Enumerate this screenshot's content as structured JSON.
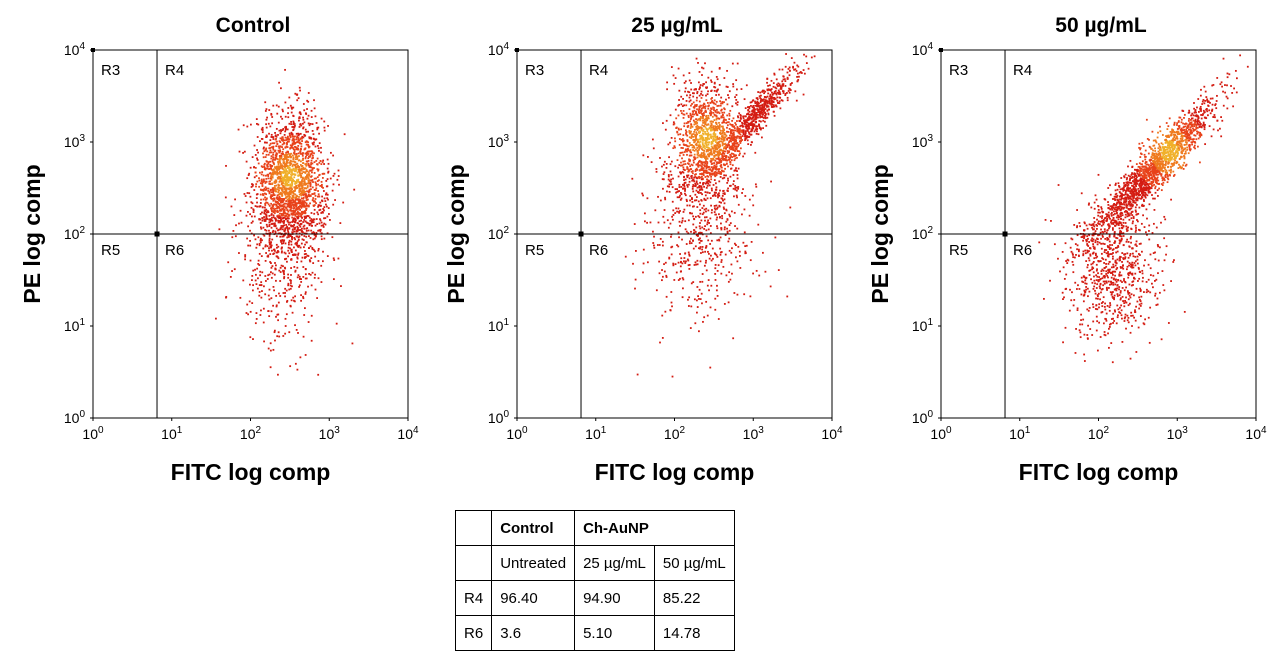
{
  "chart_data": [
    {
      "type": "scatter",
      "title": "Control",
      "xlabel": "FITC log comp",
      "ylabel": "PE log comp",
      "x_scale": "log",
      "y_scale": "log",
      "xlim": [
        1,
        10000
      ],
      "ylim": [
        1,
        10000
      ],
      "x_ticks": [
        "10^0",
        "10^1",
        "10^2",
        "10^3",
        "10^4"
      ],
      "y_ticks": [
        "10^0",
        "10^1",
        "10^2",
        "10^3",
        "10^4"
      ],
      "gate": {
        "x": 6.5,
        "y": 100
      },
      "regions": [
        "R3",
        "R4",
        "R5",
        "R6"
      ],
      "populations": [
        {
          "center": [
            320,
            350
          ],
          "spread": [
            0.22,
            0.38
          ],
          "weight": 0.82
        },
        {
          "center": [
            250,
            60
          ],
          "spread": [
            0.3,
            0.5
          ],
          "weight": 0.18
        }
      ],
      "density_center": [
        320,
        420
      ]
    },
    {
      "type": "scatter",
      "title": "25 µg/mL",
      "xlabel": "FITC log comp",
      "ylabel": "PE log comp",
      "x_scale": "log",
      "y_scale": "log",
      "xlim": [
        1,
        10000
      ],
      "ylim": [
        1,
        10000
      ],
      "x_ticks": [
        "10^0",
        "10^1",
        "10^2",
        "10^3",
        "10^4"
      ],
      "y_ticks": [
        "10^0",
        "10^1",
        "10^2",
        "10^3",
        "10^4"
      ],
      "gate": {
        "x": 6.5,
        "y": 100
      },
      "regions": [
        "R3",
        "R4",
        "R5",
        "R6"
      ],
      "populations": [
        {
          "center": [
            250,
            1000
          ],
          "spread": [
            0.2,
            0.35
          ],
          "weight": 0.5
        },
        {
          "center": [
            1000,
            1800
          ],
          "spread": [
            0.3,
            0.3
          ],
          "weight": 0.3,
          "diagonal": true
        },
        {
          "center": [
            200,
            100
          ],
          "spread": [
            0.35,
            0.45
          ],
          "weight": 0.2
        }
      ],
      "density_center": [
        260,
        1100
      ]
    },
    {
      "type": "scatter",
      "title": "50 µg/mL",
      "xlabel": "FITC log comp",
      "ylabel": "PE log comp",
      "x_scale": "log",
      "y_scale": "log",
      "xlim": [
        1,
        10000
      ],
      "ylim": [
        1,
        10000
      ],
      "x_ticks": [
        "10^0",
        "10^1",
        "10^2",
        "10^3",
        "10^4"
      ],
      "y_ticks": [
        "10^0",
        "10^1",
        "10^2",
        "10^3",
        "10^4"
      ],
      "gate": {
        "x": 6.5,
        "y": 100
      },
      "regions": [
        "R3",
        "R4",
        "R5",
        "R6"
      ],
      "populations": [
        {
          "center": [
            500,
            500
          ],
          "spread": [
            0.4,
            0.4
          ],
          "weight": 0.7,
          "diagonal": true
        },
        {
          "center": [
            150,
            40
          ],
          "spread": [
            0.3,
            0.4
          ],
          "weight": 0.3
        }
      ],
      "density_center": [
        800,
        800
      ]
    }
  ],
  "table": {
    "header1": [
      "",
      "Control",
      "Ch-AuNP"
    ],
    "header2": [
      "",
      "Untreated",
      "25 µg/mL",
      "50 µg/mL"
    ],
    "rows": [
      [
        "R4",
        "96.40",
        "94.90",
        "85.22"
      ],
      [
        "R6",
        "3.6",
        "5.10",
        "14.78"
      ]
    ]
  }
}
